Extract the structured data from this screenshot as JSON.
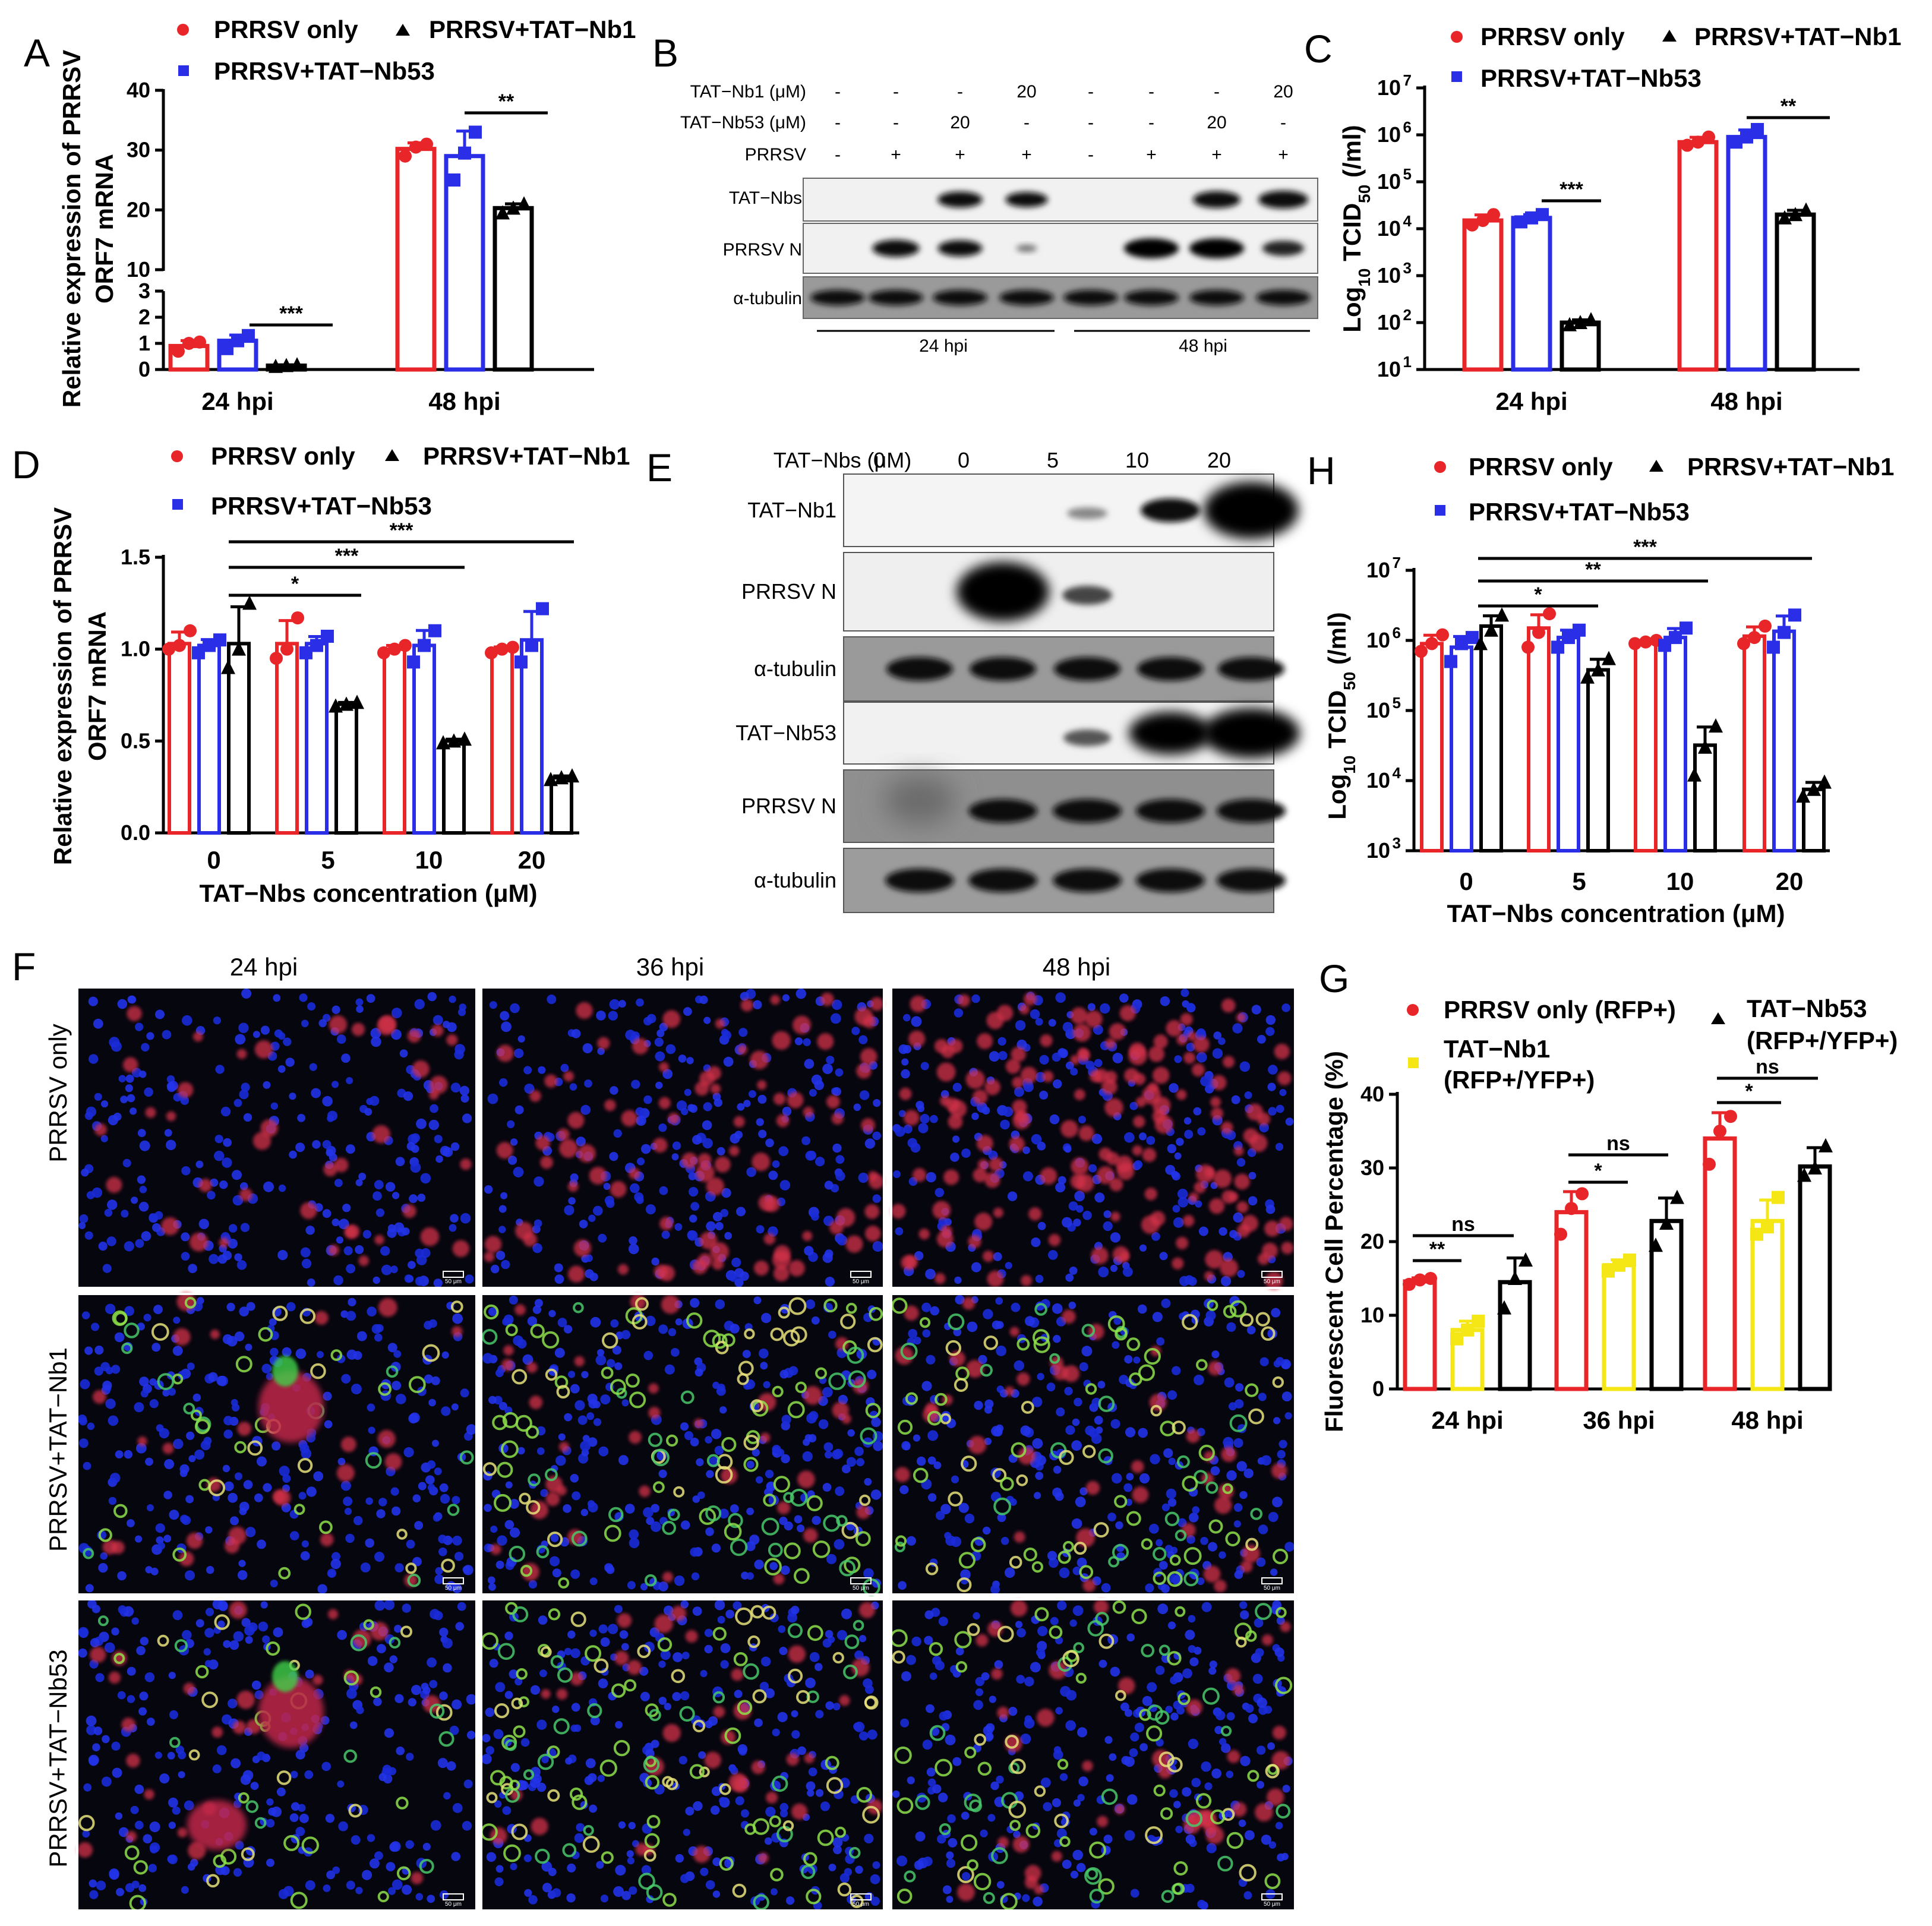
{
  "colors": {
    "red": "#e8262a",
    "blue": "#2a2ee6",
    "black": "#000000",
    "yellow": "#f5e616"
  },
  "panels": [
    "A",
    "B",
    "C",
    "D",
    "E",
    "F",
    "G",
    "H"
  ],
  "legends": {
    "only": "PRRSV only",
    "nb1": "PRRSV+TAT−Nb1",
    "nb53": "PRRSV+TAT−Nb53",
    "g_only": "PRRSV only (RFP+)",
    "g_nb1_1": "TAT−Nb1",
    "g_nb1_2": "(RFP+/YFP+)",
    "g_nb53_1": "TAT−Nb53",
    "g_nb53_2": "(RFP+/YFP+)"
  },
  "chart_data": [
    {
      "id": "A",
      "type": "bar",
      "ylabel_line1": "Relative expression of PRRSV",
      "ylabel_line2": "ORF7 mRNA",
      "categories": [
        "24 hpi",
        "48 hpi"
      ],
      "yticks_lower": [
        "0",
        "1",
        "2",
        "3"
      ],
      "yticks_upper": [
        "10",
        "20",
        "30",
        "40"
      ],
      "series": [
        {
          "name": "PRRSV only",
          "values": [
            0.9,
            30.2
          ],
          "points": [
            [
              0.7,
              1.0,
              1.05
            ],
            [
              29.0,
              30.5,
              31.0
            ]
          ]
        },
        {
          "name": "PRRSV+TAT−Nb53",
          "values": [
            1.1,
            29.0
          ],
          "points": [
            [
              0.8,
              1.1,
              1.3
            ],
            [
              25.0,
              29.5,
              33.0
            ]
          ]
        },
        {
          "name": "PRRSV+TAT−Nb1",
          "values": [
            0.15,
            20.3
          ],
          "points": [
            [
              0.12,
              0.15,
              0.18
            ],
            [
              19.5,
              20.3,
              21.0
            ]
          ]
        }
      ],
      "significance": [
        {
          "label": "***"
        },
        {
          "label": "**"
        }
      ]
    },
    {
      "id": "C",
      "type": "bar",
      "scale": "log",
      "ylabel_line1": "Log",
      "ylabel_sub": "10",
      "ylabel_line2": " TCID",
      "ylabel_sub2": "50",
      "ylabel_line3": " (/ml)",
      "categories": [
        "24 hpi",
        "48 hpi"
      ],
      "ylim": [
        10,
        10000000
      ],
      "series": [
        {
          "name": "PRRSV only",
          "values": [
            15000,
            700000
          ],
          "points": [
            [
              12000,
              15000,
              20000
            ],
            [
              600000,
              700000,
              900000
            ]
          ]
        },
        {
          "name": "PRRSV+TAT−Nb53",
          "values": [
            17000,
            900000
          ],
          "points": [
            [
              14000,
              17000,
              20000
            ],
            [
              700000,
              900000,
              1300000
            ]
          ]
        },
        {
          "name": "PRRSV+TAT−Nb1",
          "values": [
            100,
            20000
          ],
          "points": [
            [
              90,
              100,
              115
            ],
            [
              17000,
              20000,
              25000
            ]
          ]
        }
      ],
      "significance": [
        {
          "label": "***"
        },
        {
          "label": "**"
        }
      ]
    },
    {
      "id": "D",
      "type": "bar",
      "ylabel_line1": "Relative expression of PRRSV",
      "ylabel_line2": "ORF7 mRNA",
      "xlabel": "TAT−Nbs concentration (μM)",
      "categories": [
        "0",
        "5",
        "10",
        "20"
      ],
      "yticks": [
        "0.0",
        "0.5",
        "1.0",
        "1.5"
      ],
      "ylim": [
        0,
        1.5
      ],
      "series": [
        {
          "name": "PRRSV only",
          "values": [
            1.03,
            1.03,
            1.0,
            1.0
          ],
          "points": [
            [
              1.0,
              1.02,
              1.1
            ],
            [
              0.95,
              1.0,
              1.17
            ],
            [
              0.98,
              1.0,
              1.02
            ],
            [
              0.98,
              1.0,
              1.01
            ]
          ]
        },
        {
          "name": "PRRSV+TAT−Nb53",
          "values": [
            1.02,
            1.03,
            1.02,
            1.05
          ],
          "points": [
            [
              0.98,
              1.02,
              1.05
            ],
            [
              0.98,
              1.02,
              1.07
            ],
            [
              0.93,
              1.02,
              1.1
            ],
            [
              0.93,
              1.02,
              1.22
            ]
          ]
        },
        {
          "name": "PRRSV+TAT−Nb1",
          "values": [
            1.03,
            0.7,
            0.5,
            0.3
          ],
          "points": [
            [
              0.9,
              1.0,
              1.25
            ],
            [
              0.69,
              0.7,
              0.71
            ],
            [
              0.49,
              0.5,
              0.51
            ],
            [
              0.29,
              0.3,
              0.31
            ]
          ]
        }
      ],
      "significance": [
        {
          "label": "*"
        },
        {
          "label": "***"
        },
        {
          "label": "***"
        }
      ]
    },
    {
      "id": "H",
      "type": "bar",
      "scale": "log",
      "ylabel_line1": "Log",
      "ylabel_sub": "10",
      "ylabel_line2": " TCID",
      "ylabel_sub2": "50",
      "ylabel_line3": " (/ml)",
      "xlabel": "TAT−Nbs concentration (μM)",
      "categories": [
        "0",
        "5",
        "10",
        "20"
      ],
      "ylim": [
        1000,
        10000000
      ],
      "series": [
        {
          "name": "PRRSV only",
          "values": [
            900000,
            1500000,
            950000,
            1150000
          ],
          "points": [
            [
              700000,
              900000,
              1200000
            ],
            [
              800000,
              1300000,
              2400000
            ],
            [
              900000,
              950000,
              1000000
            ],
            [
              900000,
              1100000,
              1600000
            ]
          ]
        },
        {
          "name": "PRRSV+TAT−Nb53",
          "values": [
            800000,
            1100000,
            1100000,
            1350000
          ],
          "points": [
            [
              500000,
              900000,
              1100000
            ],
            [
              800000,
              1100000,
              1400000
            ],
            [
              850000,
              1100000,
              1500000
            ],
            [
              800000,
              1300000,
              2300000
            ]
          ]
        },
        {
          "name": "PRRSV+TAT−Nb1",
          "values": [
            1600000,
            380000,
            32000,
            7500
          ],
          "points": [
            [
              900000,
              1400000,
              2300000
            ],
            [
              300000,
              380000,
              550000
            ],
            [
              12000,
              30000,
              60000
            ],
            [
              6000,
              7500,
              9500
            ]
          ]
        }
      ],
      "significance": [
        {
          "label": "*"
        },
        {
          "label": "**"
        },
        {
          "label": "***"
        }
      ]
    },
    {
      "id": "G",
      "type": "bar",
      "ylabel": "Fluorescent Cell Percentage (%)",
      "categories": [
        "24 hpi",
        "36 hpi",
        "48 hpi"
      ],
      "yticks": [
        "0",
        "10",
        "20",
        "30",
        "40"
      ],
      "ylim": [
        0,
        40
      ],
      "series": [
        {
          "name": "PRRSV only (RFP+)",
          "values": [
            14.6,
            24.0,
            34.0
          ],
          "points": [
            [
              14.2,
              14.8,
              15.0
            ],
            [
              21.0,
              24.5,
              26.5
            ],
            [
              30.5,
              35.0,
              37.0
            ]
          ]
        },
        {
          "name": "TAT−Nb1 (RFP+/YFP+)",
          "values": [
            8.0,
            16.8,
            22.8
          ],
          "points": [
            [
              6.8,
              8.0,
              9.2
            ],
            [
              16.0,
              16.8,
              17.5
            ],
            [
              21.0,
              22.0,
              26.0
            ]
          ]
        },
        {
          "name": "TAT−Nb53 (RFP+/YFP+)",
          "values": [
            14.5,
            22.8,
            30.2
          ],
          "points": [
            [
              11.0,
              15.0,
              17.5
            ],
            [
              19.5,
              22.5,
              26.0
            ],
            [
              29.0,
              30.0,
              33.0
            ]
          ]
        }
      ],
      "significance": [
        {
          "label": "**"
        },
        {
          "label": "ns"
        },
        {
          "label": "*"
        },
        {
          "label": "ns"
        },
        {
          "label": "*"
        },
        {
          "label": "ns"
        }
      ]
    }
  ],
  "blot_B": {
    "rows": [
      {
        "label": "TAT−Nb1 (μM)",
        "values": [
          "-",
          "-",
          "-",
          "20",
          "-",
          "-",
          "-",
          "20"
        ]
      },
      {
        "label": "TAT−Nb53 (μM)",
        "values": [
          "-",
          "-",
          "20",
          "-",
          "-",
          "-",
          "20",
          "-"
        ]
      },
      {
        "label": "PRRSV",
        "values": [
          "-",
          "+",
          "+",
          "+",
          "-",
          "+",
          "+",
          "+"
        ]
      }
    ],
    "bands": [
      "TAT−Nbs",
      "PRRSV N",
      "α-tubulin"
    ],
    "groups": [
      "24 hpi",
      "48 hpi"
    ]
  },
  "blot_E": {
    "header_label": "TAT−Nbs (μM)",
    "concentrations": [
      "0",
      "0",
      "5",
      "10",
      "20"
    ],
    "bands": [
      "TAT−Nb1",
      "PRRSV N",
      "α-tubulin",
      "TAT−Nb53",
      "PRRSV N",
      "α-tubulin"
    ]
  },
  "micrographs_F": {
    "columns": [
      "24 hpi",
      "36 hpi",
      "48 hpi"
    ],
    "rows": [
      "PRRSV only",
      "PRRSV+TAT−Nb1",
      "PRRSV+TAT−Nb53"
    ],
    "scale_label": "50 μm"
  }
}
